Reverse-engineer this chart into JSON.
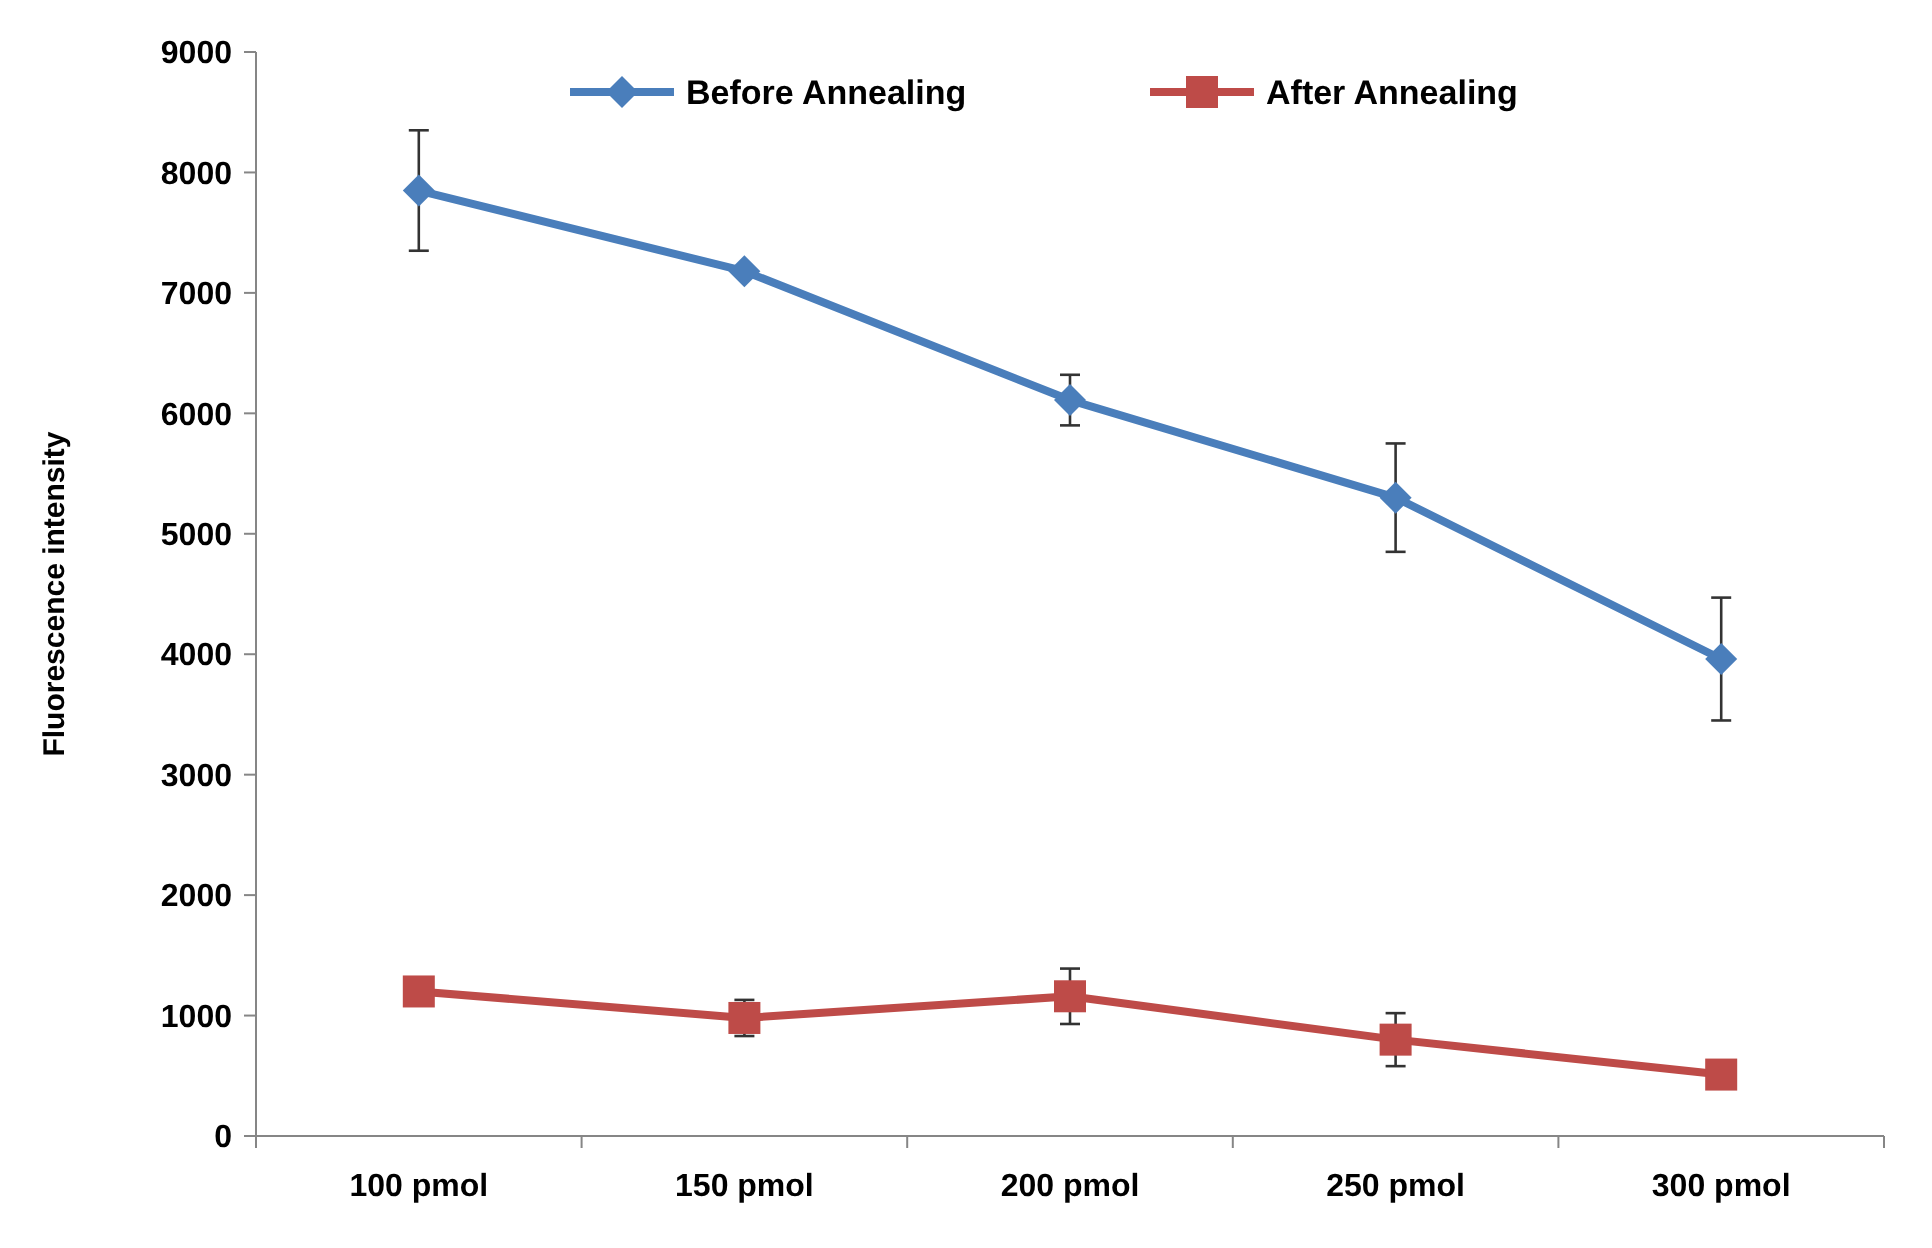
{
  "chart_data": {
    "type": "line",
    "ylabel": "Fluorescence intensity",
    "categories": [
      "100 pmol",
      "150 pmol",
      "200 pmol",
      "250 pmol",
      "300 pmol"
    ],
    "ylim": [
      0,
      9000
    ],
    "yticks": [
      0,
      1000,
      2000,
      3000,
      4000,
      5000,
      6000,
      7000,
      8000,
      9000
    ],
    "grid": false,
    "legend": "top",
    "line_style": "solid",
    "series": [
      {
        "name": "Before Annealing",
        "color": "#4a7ebb",
        "marker": "diamond",
        "values": [
          7850,
          7180,
          6110,
          5300,
          3960
        ],
        "errors": [
          500,
          null,
          210,
          450,
          510
        ]
      },
      {
        "name": "After Annealing",
        "color": "#be4b48",
        "marker": "square",
        "values": [
          1200,
          980,
          1160,
          800,
          510
        ],
        "errors": [
          null,
          150,
          230,
          220,
          null
        ]
      }
    ]
  }
}
